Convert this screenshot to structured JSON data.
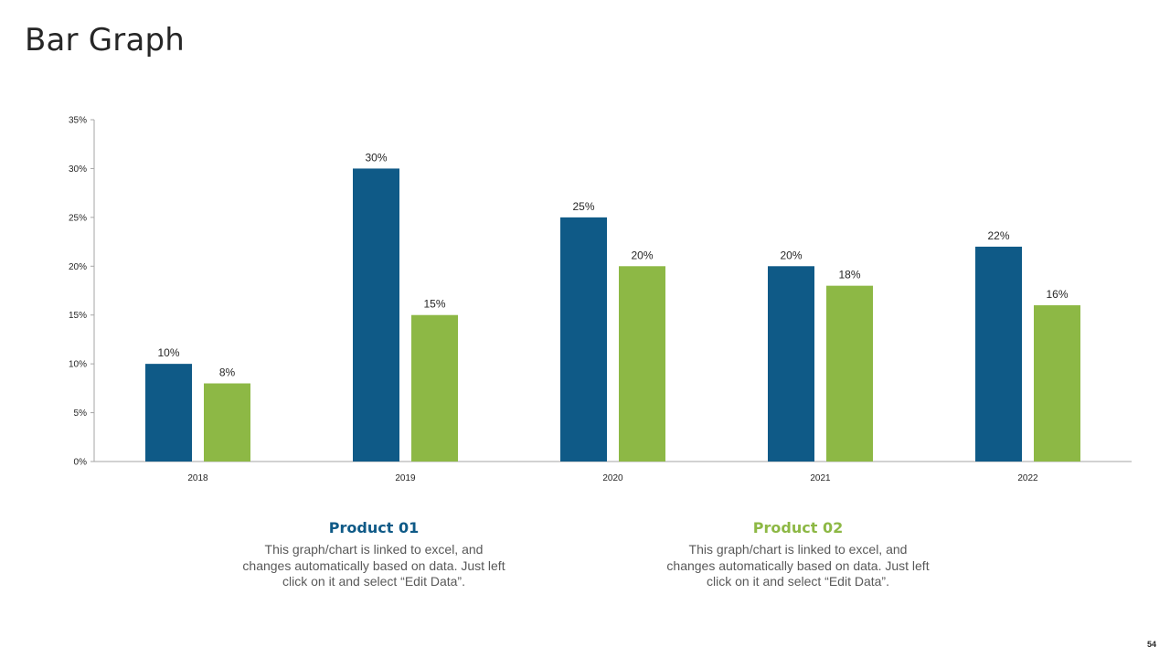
{
  "slide": {
    "title": "Bar Graph",
    "page_number": "54"
  },
  "colors": {
    "product_01": "#0f5a87",
    "product_02": "#8db845",
    "axis": "#a6a6a6",
    "label": "#262626"
  },
  "chart_data": {
    "type": "bar",
    "categories": [
      "2018",
      "2019",
      "2020",
      "2021",
      "2022"
    ],
    "series": [
      {
        "name": "Product 01",
        "values": [
          10,
          30,
          25,
          20,
          22
        ],
        "labels": [
          "10%",
          "30%",
          "25%",
          "20%",
          "22%"
        ]
      },
      {
        "name": "Product 02",
        "values": [
          8,
          15,
          20,
          18,
          16
        ],
        "labels": [
          "8%",
          "15%",
          "20%",
          "18%",
          "16%"
        ]
      }
    ],
    "ylim": [
      0,
      35
    ],
    "yticks": [
      0,
      5,
      10,
      15,
      20,
      25,
      30,
      35
    ],
    "ytick_labels": [
      "0%",
      "5%",
      "10%",
      "15%",
      "20%",
      "25%",
      "30%",
      "35%"
    ],
    "grid": false,
    "title": "",
    "xlabel": "",
    "ylabel": ""
  },
  "legend": {
    "product_01": {
      "title": "Product 01",
      "description": "This graph/chart is linked to excel, and changes automatically based on data. Just left click on it and select “Edit Data”."
    },
    "product_02": {
      "title": "Product 02",
      "description": "This graph/chart is linked to excel, and changes automatically based on data. Just left click on it and select “Edit Data”."
    }
  }
}
